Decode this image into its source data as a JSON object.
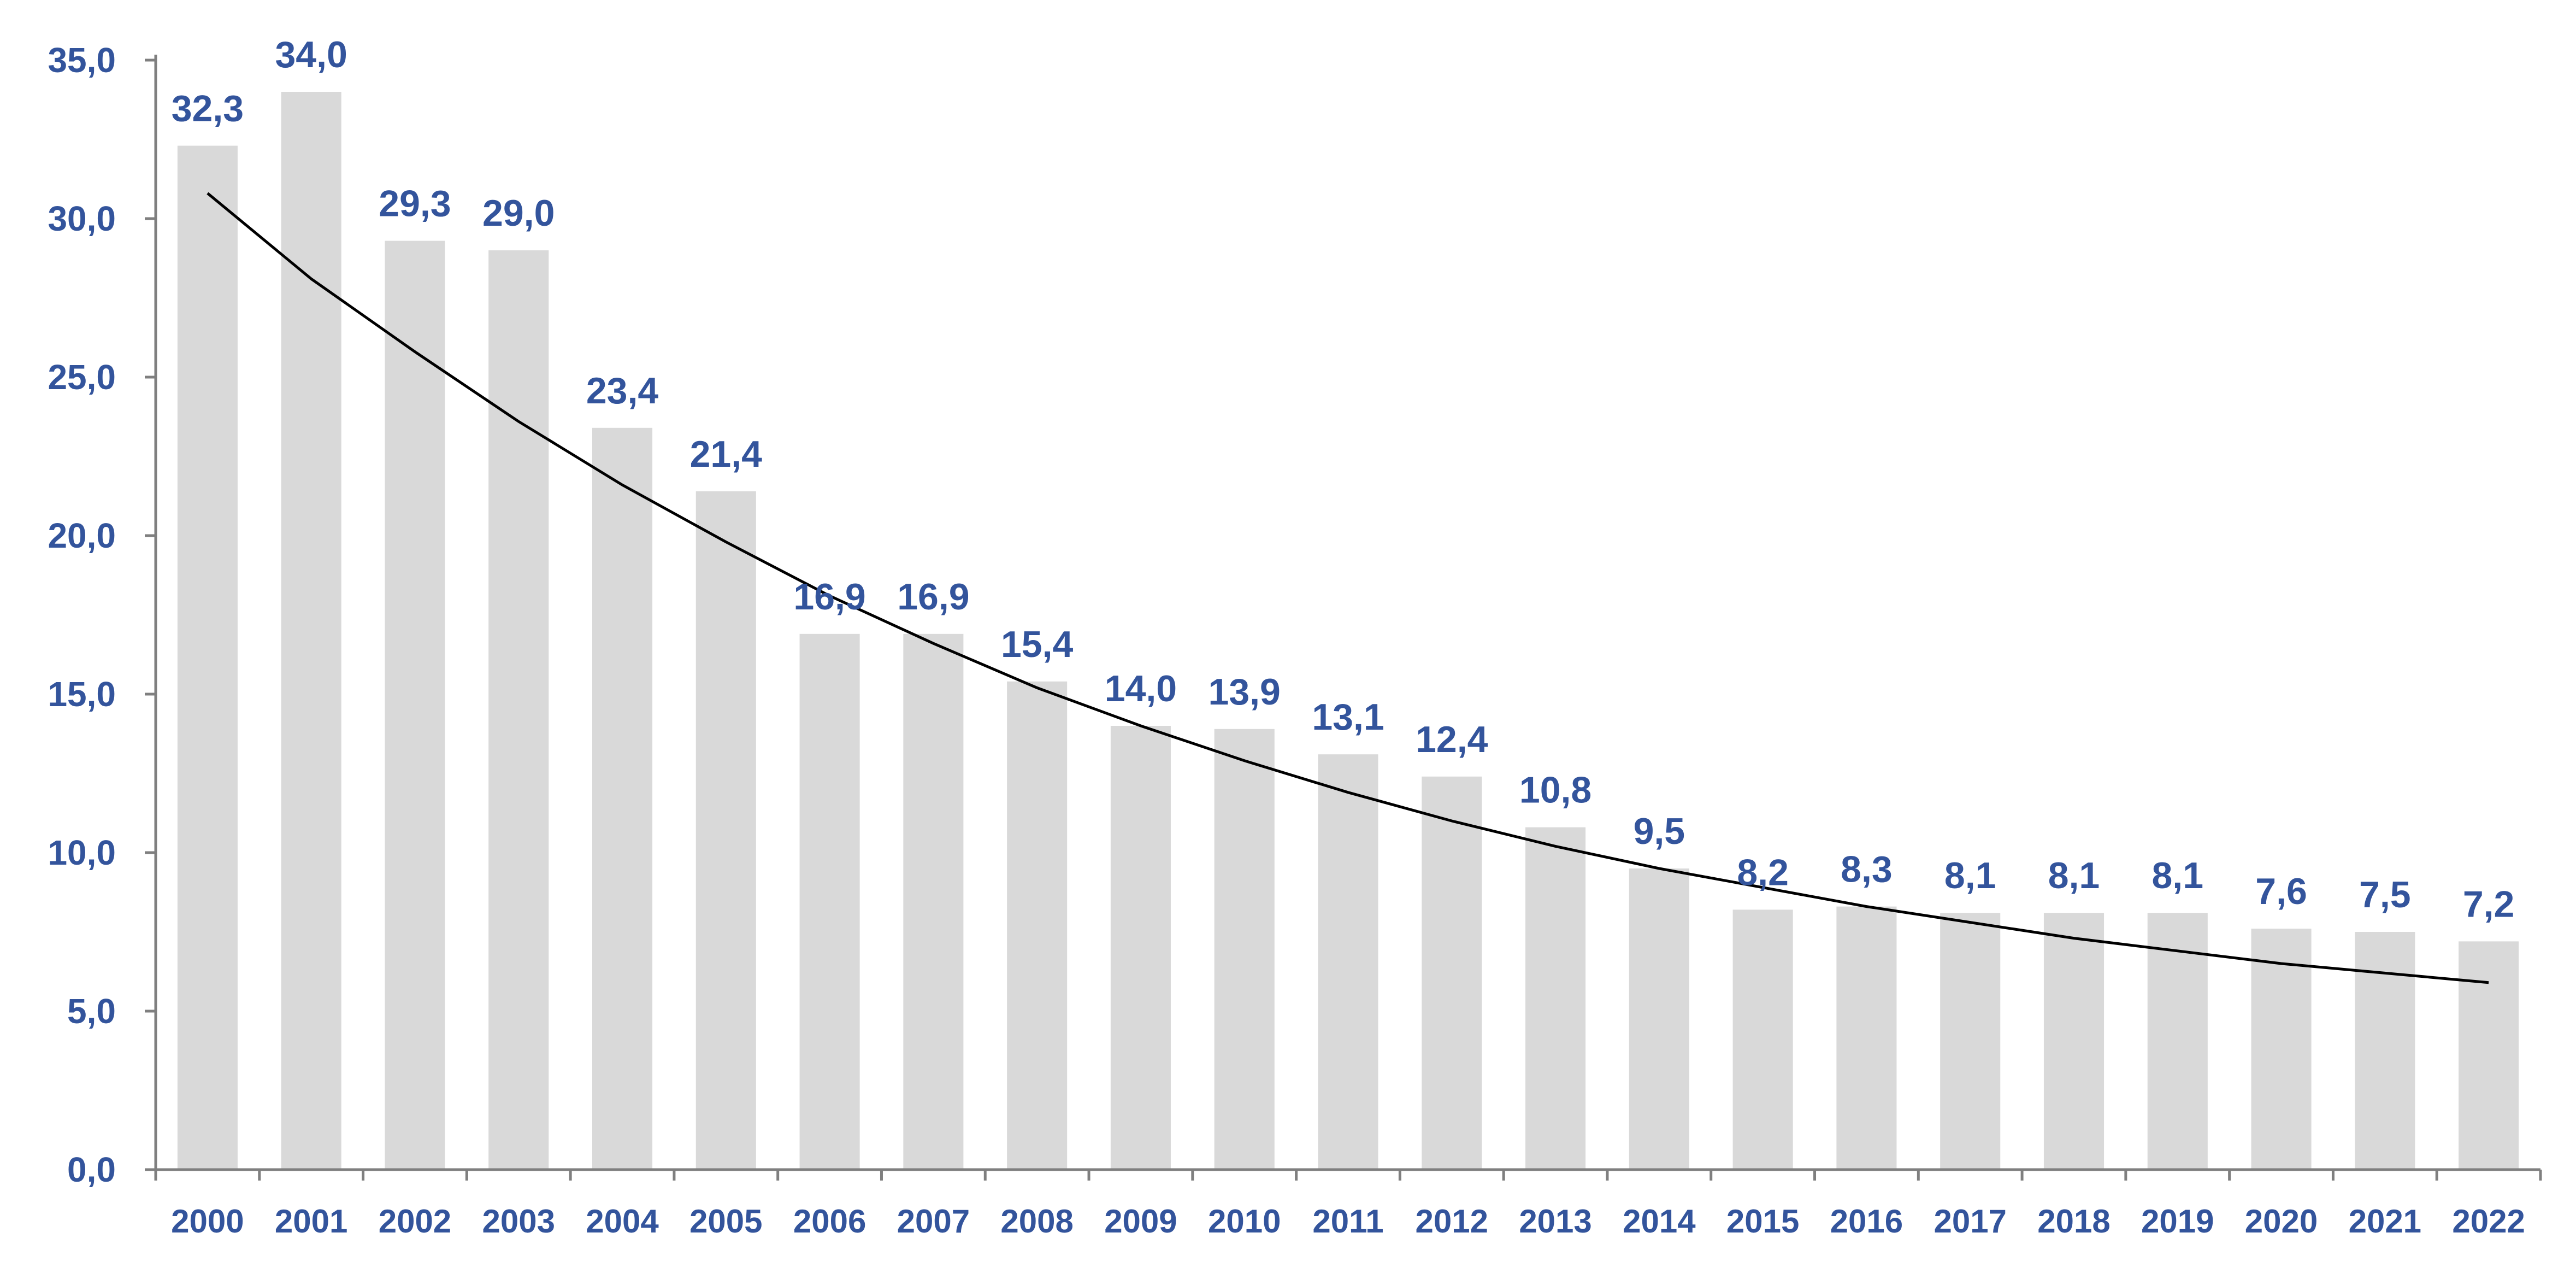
{
  "chart_data": {
    "type": "bar",
    "categories": [
      "2000",
      "2001",
      "2002",
      "2003",
      "2004",
      "2005",
      "2006",
      "2007",
      "2008",
      "2009",
      "2010",
      "2011",
      "2012",
      "2013",
      "2014",
      "2015",
      "2016",
      "2017",
      "2018",
      "2019",
      "2020",
      "2021",
      "2022"
    ],
    "values": [
      32.3,
      34.0,
      29.3,
      29.0,
      23.4,
      21.4,
      16.9,
      16.9,
      15.4,
      14.0,
      13.9,
      13.1,
      12.4,
      10.8,
      9.5,
      8.2,
      8.3,
      8.1,
      8.1,
      8.1,
      7.6,
      7.5,
      7.2
    ],
    "data_labels": [
      "32,3",
      "34,0",
      "29,3",
      "29,0",
      "23,4",
      "21,4",
      "16,9",
      "16,9",
      "15,4",
      "14,0",
      "13,9",
      "13,1",
      "12,4",
      "10,8",
      "9,5",
      "8,2",
      "8,3",
      "8,1",
      "8,1",
      "8,1",
      "7,6",
      "7,5",
      "7,2"
    ],
    "y_ticks": [
      0,
      5,
      10,
      15,
      20,
      25,
      30,
      35
    ],
    "y_tick_labels": [
      "0,0",
      "5,0",
      "10,0",
      "15,0",
      "20,0",
      "25,0",
      "30,0",
      "35,0"
    ],
    "ylim": [
      0,
      35
    ],
    "trendline": {
      "type": "polynomial",
      "values": [
        30.8,
        28.1,
        25.8,
        23.6,
        21.6,
        19.8,
        18.1,
        16.6,
        15.2,
        14.0,
        12.9,
        11.9,
        11.0,
        10.2,
        9.5,
        8.9,
        8.3,
        7.8,
        7.3,
        6.9,
        6.5,
        6.2,
        5.9
      ]
    },
    "title": "",
    "xlabel": "",
    "ylabel": "",
    "grid": false,
    "legend": "none",
    "colors": {
      "bar": "#d9d9d9",
      "label": "#33549c",
      "trendline": "#000000",
      "axis": "#7f7f7f"
    }
  }
}
